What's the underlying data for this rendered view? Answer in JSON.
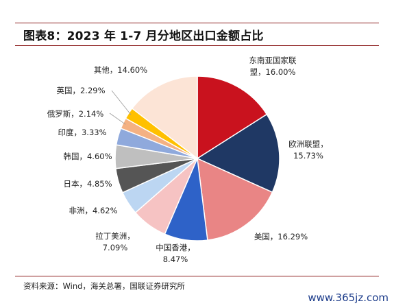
{
  "figure": {
    "title": "图表8：2023 年 1-7 月分地区出口金额占比",
    "source": "资料来源：Wind，海关总署，国联证券研究所",
    "watermark": "www.365jz.com"
  },
  "chart_data": {
    "type": "pie",
    "title": "图表8：2023 年 1-7 月分地区出口金额占比",
    "start_angle_deg": 0,
    "direction": "clockwise",
    "slices": [
      {
        "name": "东南亚国家联盟",
        "value": 16.0,
        "label_lines": [
          "东南亚国家联",
          "盟，16.00%"
        ],
        "color": "#c9121e"
      },
      {
        "name": "欧洲联盟",
        "value": 15.73,
        "label_lines": [
          "欧洲联盟，",
          "15.73%"
        ],
        "color": "#1f3864"
      },
      {
        "name": "美国",
        "value": 16.29,
        "label_lines": [
          "美国，16.29%"
        ],
        "color": "#e98585"
      },
      {
        "name": "中国香港",
        "value": 8.47,
        "label_lines": [
          "中国香港，",
          "8.47%"
        ],
        "color": "#2e62c8"
      },
      {
        "name": "拉丁美洲",
        "value": 7.09,
        "label_lines": [
          "拉丁美洲，",
          "7.09%"
        ],
        "color": "#f6c3c3"
      },
      {
        "name": "非洲",
        "value": 4.62,
        "label_lines": [
          "非洲，4.62%"
        ],
        "color": "#bcd6f2"
      },
      {
        "name": "日本",
        "value": 4.85,
        "label_lines": [
          "日本，4.85%"
        ],
        "color": "#555555"
      },
      {
        "name": "韩国",
        "value": 4.6,
        "label_lines": [
          "韩国，4.60%"
        ],
        "color": "#bfbfbf"
      },
      {
        "name": "印度",
        "value": 3.33,
        "label_lines": [
          "印度，3.33%"
        ],
        "color": "#8fa9dc"
      },
      {
        "name": "俄罗斯",
        "value": 2.14,
        "label_lines": [
          "俄罗斯，2.14%"
        ],
        "color": "#f4b183"
      },
      {
        "name": "英国",
        "value": 2.29,
        "label_lines": [
          "英国，2.29%"
        ],
        "color": "#ffc000"
      },
      {
        "name": "其他",
        "value": 14.6,
        "label_lines": [
          "其他，14.60%"
        ],
        "color": "#fce4d6"
      }
    ]
  }
}
